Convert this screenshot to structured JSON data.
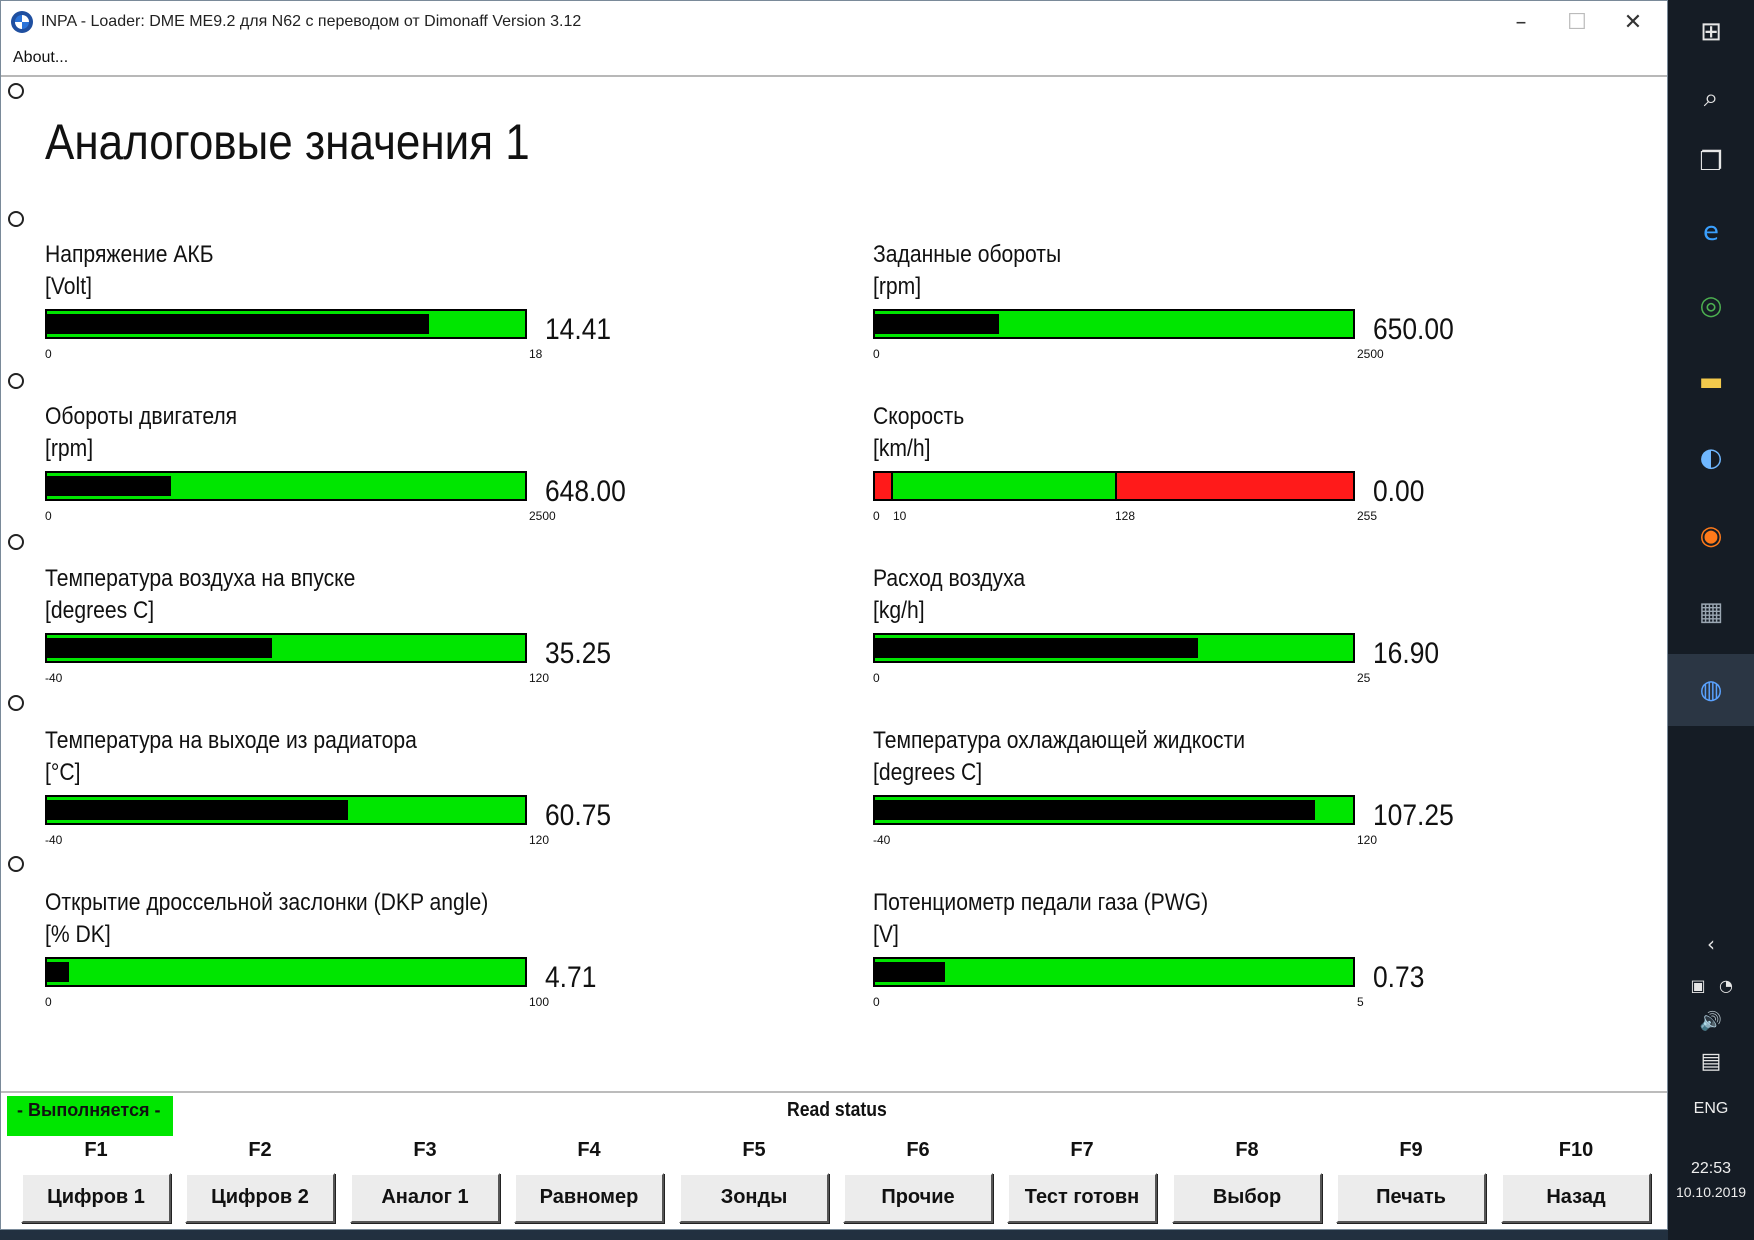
{
  "window": {
    "title": "INPA - Loader:  DME ME9.2 для N62 с переводом от Dimonaff Version 3.12",
    "menu_about": "About..."
  },
  "page_title": "Аналоговые значения 1",
  "gauges": [
    {
      "label": "Напряжение АКБ",
      "unit": "[Volt]",
      "value": "14.41",
      "min": "0",
      "max": "18",
      "fill_fraction": 0.8
    },
    {
      "label": "Заданные обороты",
      "unit": "[rpm]",
      "value": "650.00",
      "min": "0",
      "max": "2500",
      "fill_fraction": 0.26
    },
    {
      "label": "Обороты двигателя",
      "unit": "[rpm]",
      "value": "648.00",
      "min": "0",
      "max": "2500",
      "fill_fraction": 0.26
    },
    {
      "label": "Скорость",
      "unit": "[km/h]",
      "value": "0.00",
      "min": "0",
      "max": "255",
      "ticks": [
        "10",
        "128"
      ],
      "fill_fraction": 0.0
    },
    {
      "label": "Температура воздуха на впуске",
      "unit": "[degrees C]",
      "value": "35.25",
      "min": "-40",
      "max": "120",
      "fill_fraction": 0.47
    },
    {
      "label": "Расход воздуха",
      "unit": "[kg/h]",
      "value": "16.90",
      "min": "0",
      "max": "25",
      "fill_fraction": 0.676
    },
    {
      "label": "Температура на выходе из радиатора",
      "unit": "[°C]",
      "value": "60.75",
      "min": "-40",
      "max": "120",
      "fill_fraction": 0.63
    },
    {
      "label": "Температура охлаждающей жидкости",
      "unit": "[degrees C]",
      "value": "107.25",
      "min": "-40",
      "max": "120",
      "fill_fraction": 0.92
    },
    {
      "label": "Открытие дроссельной заслонки (DKP angle)",
      "unit": "[% DK]",
      "value": "4.71",
      "min": "0",
      "max": "100",
      "fill_fraction": 0.047
    },
    {
      "label": "Потенциометр педали газа (PWG)",
      "unit": "[V]",
      "value": "0.73",
      "min": "0",
      "max": "5",
      "fill_fraction": 0.146
    }
  ],
  "status": {
    "running": "Выполняется",
    "read_status": "Read status"
  },
  "function_keys": [
    {
      "key": "F1",
      "label": "Цифров 1"
    },
    {
      "key": "F2",
      "label": "Цифров 2"
    },
    {
      "key": "F3",
      "label": "Аналог 1"
    },
    {
      "key": "F4",
      "label": "Равномер"
    },
    {
      "key": "F5",
      "label": "Зонды"
    },
    {
      "key": "F6",
      "label": "Прочие"
    },
    {
      "key": "F7",
      "label": "Тест готовн"
    },
    {
      "key": "F8",
      "label": "Выбор"
    },
    {
      "key": "F9",
      "label": "Печать"
    },
    {
      "key": "F10",
      "label": "Назад"
    }
  ],
  "taskbar": {
    "language": "ENG",
    "time": "22:53",
    "date": "10.10.2019"
  },
  "colors": {
    "bar_green": "#00e600",
    "bar_fill": "#000000",
    "bar_red": "#ff1a1a"
  }
}
